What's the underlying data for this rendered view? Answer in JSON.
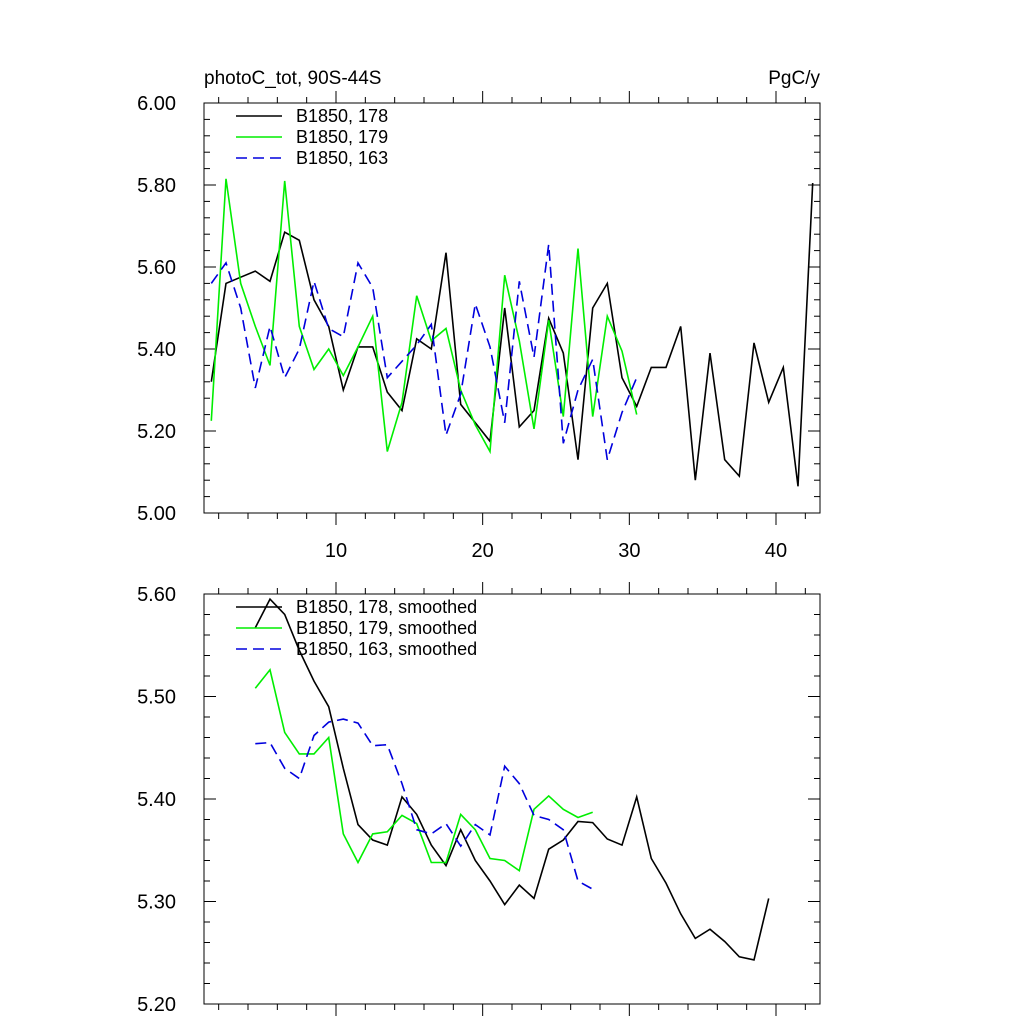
{
  "chart_data": [
    {
      "type": "line",
      "title_left": "photoC_tot, 90S-44S",
      "title_right": "PgC/y",
      "xlim": [
        1,
        43
      ],
      "ylim": [
        5.0,
        6.0
      ],
      "xticks": [
        10,
        20,
        30,
        40
      ],
      "xtick_labels": [
        "10",
        "20",
        "30",
        "40"
      ],
      "yticks": [
        5.0,
        5.2,
        5.4,
        5.6,
        5.8,
        6.0
      ],
      "ytick_labels": [
        "5.00",
        "5.20",
        "5.40",
        "5.60",
        "5.80",
        "6.00"
      ],
      "legend_position": "top-left",
      "series": [
        {
          "name": "B1850, 178",
          "color": "#000000",
          "dash": "solid",
          "x": [
            1.5,
            2.5,
            3.5,
            4.5,
            5.5,
            6.5,
            7.5,
            8.5,
            9.5,
            10.5,
            11.5,
            12.5,
            13.5,
            14.5,
            15.5,
            16.5,
            17.5,
            18.5,
            19.5,
            20.5,
            21.5,
            22.5,
            23.5,
            24.5,
            25.5,
            26.5,
            27.5,
            28.5,
            29.5,
            30.5,
            31.5,
            32.5,
            33.5,
            34.5,
            35.5,
            36.5,
            37.5,
            38.5,
            39.5,
            40.5,
            41.5,
            42.5
          ],
          "values": [
            5.32,
            5.56,
            5.575,
            5.59,
            5.565,
            5.685,
            5.665,
            5.52,
            5.455,
            5.3,
            5.405,
            5.405,
            5.295,
            5.25,
            5.425,
            5.4,
            5.635,
            5.265,
            5.22,
            5.175,
            5.5,
            5.21,
            5.25,
            5.475,
            5.39,
            5.13,
            5.5,
            5.56,
            5.33,
            5.26,
            5.355,
            5.355,
            5.455,
            5.08,
            5.39,
            5.13,
            5.09,
            5.415,
            5.27,
            5.355,
            5.065,
            5.805
          ]
        },
        {
          "name": "B1850, 179",
          "color": "#00ee00",
          "dash": "solid",
          "x": [
            1.5,
            2.5,
            3.5,
            4.5,
            5.5,
            6.5,
            7.5,
            8.5,
            9.5,
            10.5,
            11.5,
            12.5,
            13.5,
            14.5,
            15.5,
            16.5,
            17.5,
            18.5,
            19.5,
            20.5,
            21.5,
            22.5,
            23.5,
            24.5,
            25.5,
            26.5,
            27.5,
            28.5,
            29.5,
            30.5
          ],
          "values": [
            5.225,
            5.815,
            5.56,
            5.455,
            5.36,
            5.81,
            5.455,
            5.35,
            5.4,
            5.335,
            5.405,
            5.48,
            5.15,
            5.27,
            5.53,
            5.42,
            5.45,
            5.3,
            5.215,
            5.15,
            5.58,
            5.42,
            5.205,
            5.47,
            5.235,
            5.645,
            5.235,
            5.48,
            5.395,
            5.24
          ]
        },
        {
          "name": "B1850, 163",
          "color": "#0000dd",
          "dash": "dashed",
          "x": [
            1.5,
            2.5,
            3.5,
            4.5,
            5.5,
            6.5,
            7.5,
            8.5,
            9.5,
            10.5,
            11.5,
            12.5,
            13.5,
            14.5,
            15.5,
            16.5,
            17.5,
            18.5,
            19.5,
            20.5,
            21.5,
            22.5,
            23.5,
            24.5,
            25.5,
            26.5,
            27.5,
            28.5,
            29.5,
            30.5
          ],
          "values": [
            5.56,
            5.61,
            5.5,
            5.305,
            5.455,
            5.33,
            5.4,
            5.565,
            5.45,
            5.43,
            5.61,
            5.55,
            5.33,
            5.37,
            5.41,
            5.46,
            5.19,
            5.29,
            5.51,
            5.405,
            5.22,
            5.565,
            5.38,
            5.655,
            5.17,
            5.3,
            5.375,
            5.13,
            5.245,
            5.33
          ]
        }
      ]
    },
    {
      "type": "line",
      "xlim": [
        1,
        43
      ],
      "ylim": [
        5.2,
        5.6
      ],
      "xticks": [
        10,
        20,
        30,
        40
      ],
      "yticks": [
        5.2,
        5.3,
        5.4,
        5.5,
        5.6
      ],
      "ytick_labels": [
        "5.20",
        "5.30",
        "5.40",
        "5.50",
        "5.60"
      ],
      "legend_position": "top-left",
      "series": [
        {
          "name": "B1850, 178, smoothed",
          "color": "#000000",
          "dash": "solid",
          "x": [
            4.5,
            5.5,
            6.5,
            7.5,
            8.5,
            9.5,
            10.5,
            11.5,
            12.5,
            13.5,
            14.5,
            15.5,
            16.5,
            17.5,
            18.5,
            19.5,
            20.5,
            21.5,
            22.5,
            23.5,
            24.5,
            25.5,
            26.5,
            27.5,
            28.5,
            29.5,
            30.5,
            31.5,
            32.5,
            33.5,
            34.5,
            35.5,
            36.5,
            37.5,
            38.5,
            39.5
          ],
          "values": [
            5.567,
            5.595,
            5.58,
            5.545,
            5.515,
            5.49,
            5.43,
            5.375,
            5.36,
            5.355,
            5.402,
            5.385,
            5.355,
            5.335,
            5.37,
            5.34,
            5.32,
            5.297,
            5.316,
            5.303,
            5.351,
            5.36,
            5.378,
            5.377,
            5.361,
            5.355,
            5.402,
            5.342,
            5.318,
            5.288,
            5.264,
            5.273,
            5.261,
            5.246,
            5.243,
            5.303
          ]
        },
        {
          "name": "B1850, 179, smoothed",
          "color": "#00ee00",
          "dash": "solid",
          "x": [
            4.5,
            5.5,
            6.5,
            7.5,
            8.5,
            9.5,
            10.5,
            11.5,
            12.5,
            13.5,
            14.5,
            15.5,
            16.5,
            17.5,
            18.5,
            19.5,
            20.5,
            21.5,
            22.5,
            23.5,
            24.5,
            25.5,
            26.5,
            27.5
          ],
          "values": [
            5.508,
            5.526,
            5.465,
            5.444,
            5.444,
            5.46,
            5.366,
            5.338,
            5.366,
            5.368,
            5.384,
            5.376,
            5.338,
            5.338,
            5.385,
            5.37,
            5.342,
            5.34,
            5.33,
            5.39,
            5.403,
            5.39,
            5.382,
            5.387
          ]
        },
        {
          "name": "B1850, 163, smoothed",
          "color": "#0000dd",
          "dash": "dashed",
          "x": [
            4.5,
            5.5,
            6.5,
            7.5,
            8.5,
            9.5,
            10.5,
            11.5,
            12.5,
            13.5,
            14.5,
            15.5,
            16.5,
            17.5,
            18.5,
            19.5,
            20.5,
            21.5,
            22.5,
            23.5,
            24.5,
            25.5,
            26.5,
            27.5
          ],
          "values": [
            5.454,
            5.455,
            5.43,
            5.42,
            5.462,
            5.475,
            5.478,
            5.474,
            5.452,
            5.453,
            5.415,
            5.37,
            5.366,
            5.376,
            5.354,
            5.375,
            5.365,
            5.432,
            5.415,
            5.384,
            5.38,
            5.37,
            5.32,
            5.312
          ]
        }
      ]
    }
  ]
}
